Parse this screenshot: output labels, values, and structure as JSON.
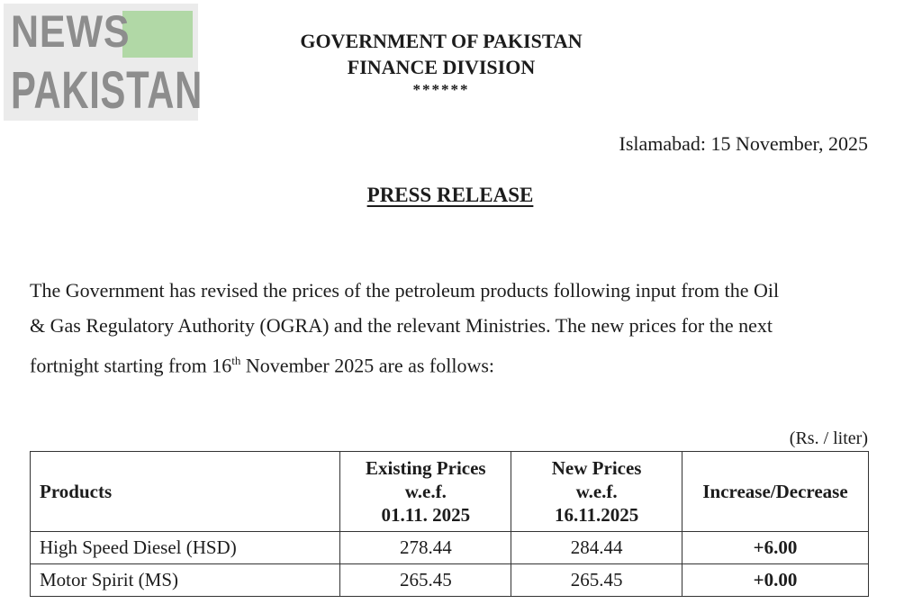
{
  "logo": {
    "line1": "NEWS",
    "line2": "PAKISTAN",
    "accent_color": "#b1d8a6"
  },
  "header": {
    "line1": "GOVERNMENT OF PAKISTAN",
    "line2": "FINANCE DIVISION",
    "line3": "******"
  },
  "date": "Islamabad: 15 November, 2025",
  "title": "PRESS RELEASE",
  "paragraph": {
    "line1": "The Government has revised the prices of the petroleum products following input from the Oil",
    "line2": "& Gas Regulatory Authority (OGRA) and the relevant Ministries. The new prices for the next",
    "line3_pre": "fortnight starting from 16",
    "line3_sup": "th",
    "line3_post": " November 2025 are as follows:"
  },
  "unit_note": "(Rs. / liter)",
  "table": {
    "headers": {
      "products": "Products",
      "existing": [
        "Existing Prices",
        "w.e.f.",
        "01.11. 2025"
      ],
      "new": [
        "New Prices",
        "w.e.f.",
        "16.11.2025"
      ],
      "change": "Increase/Decrease"
    },
    "rows": [
      {
        "product": "High Speed Diesel (HSD)",
        "existing": "278.44",
        "new": "284.44",
        "change": "+6.00"
      },
      {
        "product": "Motor Spirit (MS)",
        "existing": "265.45",
        "new": "265.45",
        "change": "+0.00"
      }
    ]
  }
}
